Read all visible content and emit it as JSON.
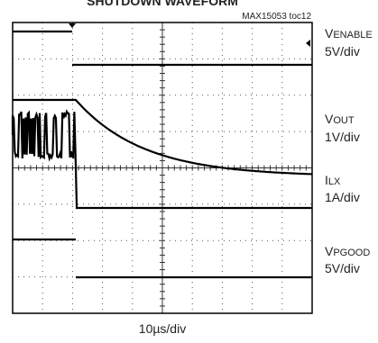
{
  "header": {
    "title": "SHUTDOWN WAVEFORM",
    "figure_id": "MAX15053 toc12"
  },
  "channels": [
    {
      "symbol": "V",
      "subscript": "ENABLE",
      "scale": "5V/div"
    },
    {
      "symbol": "V",
      "subscript": "OUT",
      "scale": "1V/div"
    },
    {
      "symbol": "I",
      "subscript": "LX",
      "scale": "1A/div"
    },
    {
      "symbol": "V",
      "subscript": "PGOOD",
      "scale": "5V/div"
    }
  ],
  "timebase": "10µs/div"
}
